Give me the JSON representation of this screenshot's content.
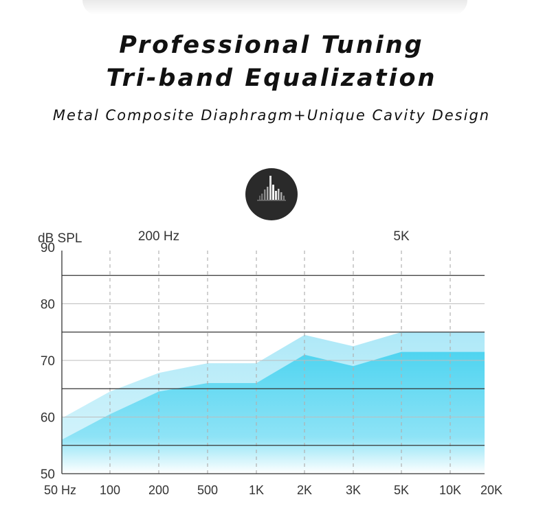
{
  "header": {
    "title_line1": "Professional Tuning",
    "title_line2": "Tri-band Equalization",
    "subtitle": "Metal Composite Diaphragm+Unique Cavity Design"
  },
  "icon": {
    "name": "equalizer-bars-icon",
    "background": "#2a2a2a"
  },
  "chart_data": {
    "type": "area",
    "ylabel": "dB SPL",
    "x_scale": "log",
    "x_ticks": [
      {
        "value": 50,
        "label": "50 Hz"
      },
      {
        "value": 100,
        "label": "100"
      },
      {
        "value": 200,
        "label": "200"
      },
      {
        "value": 500,
        "label": "500"
      },
      {
        "value": 1000,
        "label": "1K"
      },
      {
        "value": 2000,
        "label": "2K"
      },
      {
        "value": 3000,
        "label": "3K"
      },
      {
        "value": 5000,
        "label": "5K"
      },
      {
        "value": 10000,
        "label": "10K"
      },
      {
        "value": 20000,
        "label": "20K"
      }
    ],
    "xlim": [
      50,
      20000
    ],
    "ylim": [
      50,
      90
    ],
    "y_ticks": [
      90,
      80,
      70,
      60,
      50
    ],
    "reference_lines": [
      85,
      75,
      65,
      55
    ],
    "top_annotations": [
      {
        "x": 200,
        "label": "200 Hz"
      },
      {
        "x": 5000,
        "label": "5K"
      }
    ],
    "series": [
      {
        "color": "#b5ebf8",
        "x": [
          50,
          100,
          200,
          500,
          1000,
          2000,
          3000,
          5000,
          20000
        ],
        "y": [
          59.8,
          64.5,
          67.8,
          69.5,
          69.5,
          74.5,
          72.5,
          75,
          75
        ]
      },
      {
        "color": "#5ad8f0",
        "x": [
          50,
          100,
          200,
          500,
          1000,
          2000,
          3000,
          5000,
          20000
        ],
        "y": [
          56,
          60.5,
          64.5,
          66,
          66,
          71,
          69,
          71.5,
          71.5
        ]
      }
    ]
  }
}
